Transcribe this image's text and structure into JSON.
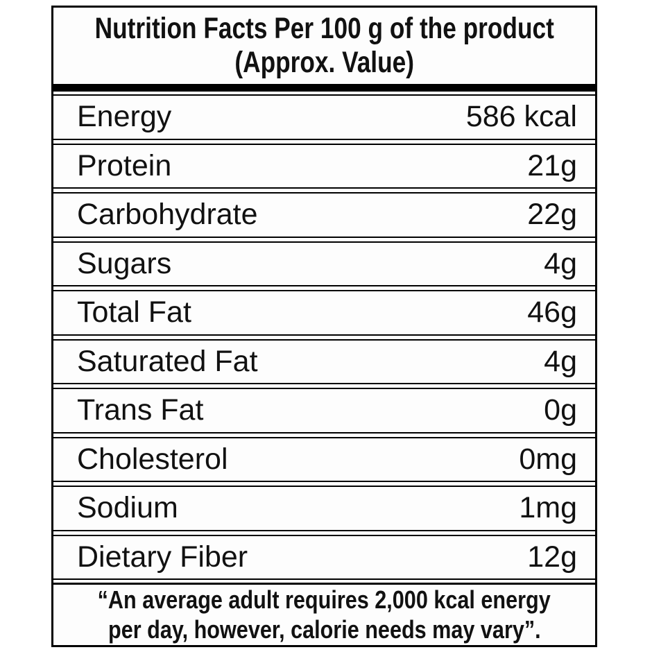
{
  "header": {
    "line1": "Nutrition Facts Per 100 g of the product",
    "line2": "(Approx. Value)"
  },
  "rows": [
    {
      "label": "Energy",
      "value": "586 kcal"
    },
    {
      "label": "Protein",
      "value": "21g"
    },
    {
      "label": "Carbohydrate",
      "value": "22g"
    },
    {
      "label": "Sugars",
      "value": "4g"
    },
    {
      "label": "Total Fat",
      "value": "46g"
    },
    {
      "label": "Saturated Fat",
      "value": "4g"
    },
    {
      "label": "Trans Fat",
      "value": "0g"
    },
    {
      "label": "Cholesterol",
      "value": "0mg"
    },
    {
      "label": "Sodium",
      "value": "1mg"
    },
    {
      "label": "Dietary Fiber",
      "value": "12g"
    }
  ],
  "footer": {
    "line1": "“An average adult requires 2,000 kcal energy",
    "line2": "per day, however, calorie needs may vary”."
  },
  "colors": {
    "border": "#000000",
    "background": "#ffffff",
    "text": "#111111"
  }
}
